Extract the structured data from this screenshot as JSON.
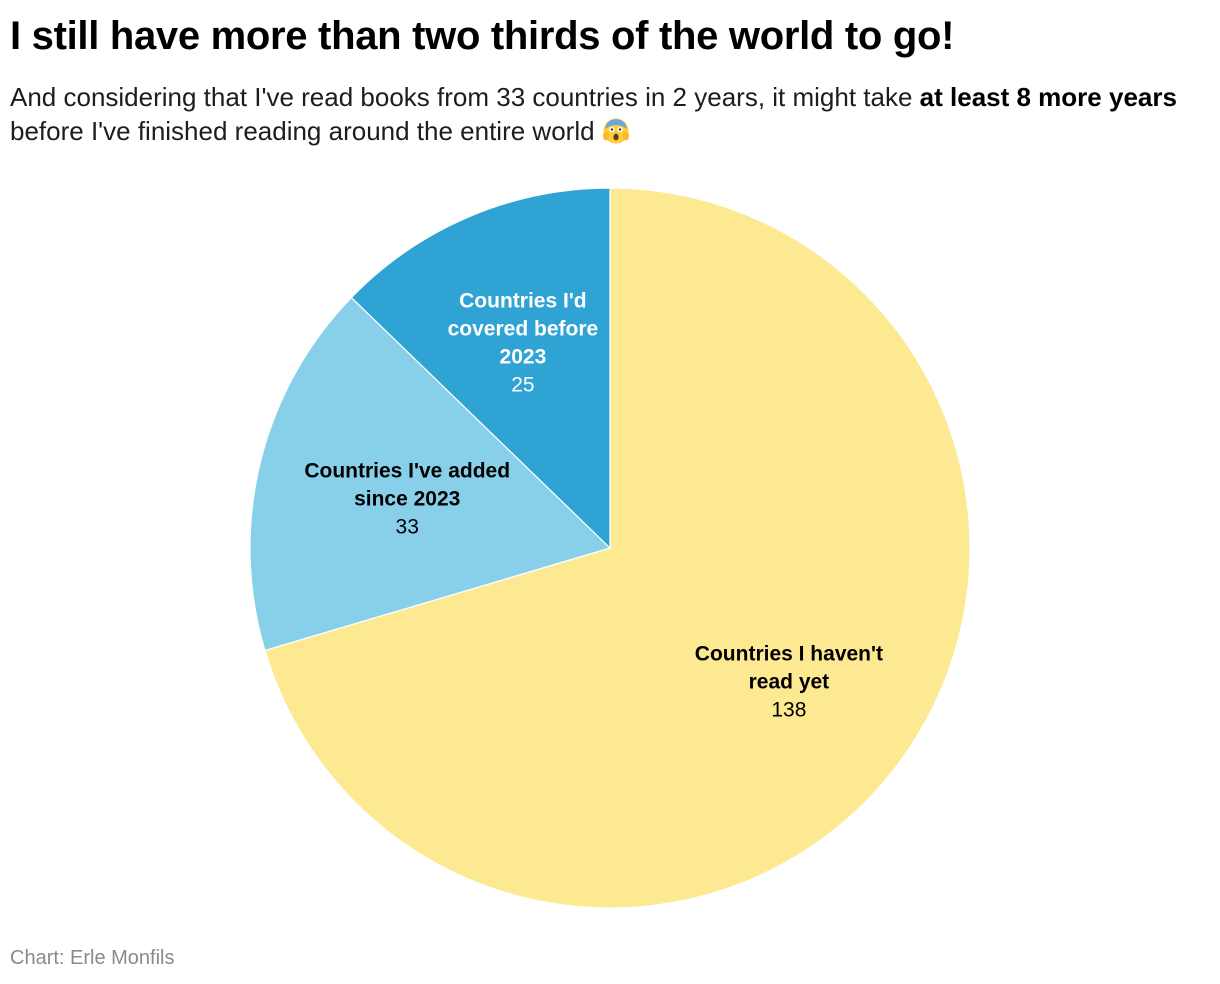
{
  "header": {
    "title": "I still have more than two thirds of the world to go!",
    "subtitle_part1": "And considering that I've read books from 33 countries in 2 years, it might take ",
    "subtitle_bold": "at least 8 more years",
    "subtitle_part2": " before I've finished reading around the entire world ",
    "subtitle_emoji": "screaming-face-icon"
  },
  "chart_data": {
    "type": "pie",
    "start_angle_deg": 0,
    "direction": "clockwise",
    "slices": [
      {
        "label": "Countries I haven't read yet",
        "value": 138,
        "color": "#fde991",
        "label_color": "#000000"
      },
      {
        "label": "Countries I've added since 2023",
        "value": 33,
        "color": "#88d0ea",
        "label_color": "#000000"
      },
      {
        "label": "Countries I'd covered before 2023",
        "value": 25,
        "color": "#2fa3d4",
        "label_color": "#ffffff"
      }
    ]
  },
  "footer": {
    "source": "Chart: Erle Monfils"
  }
}
